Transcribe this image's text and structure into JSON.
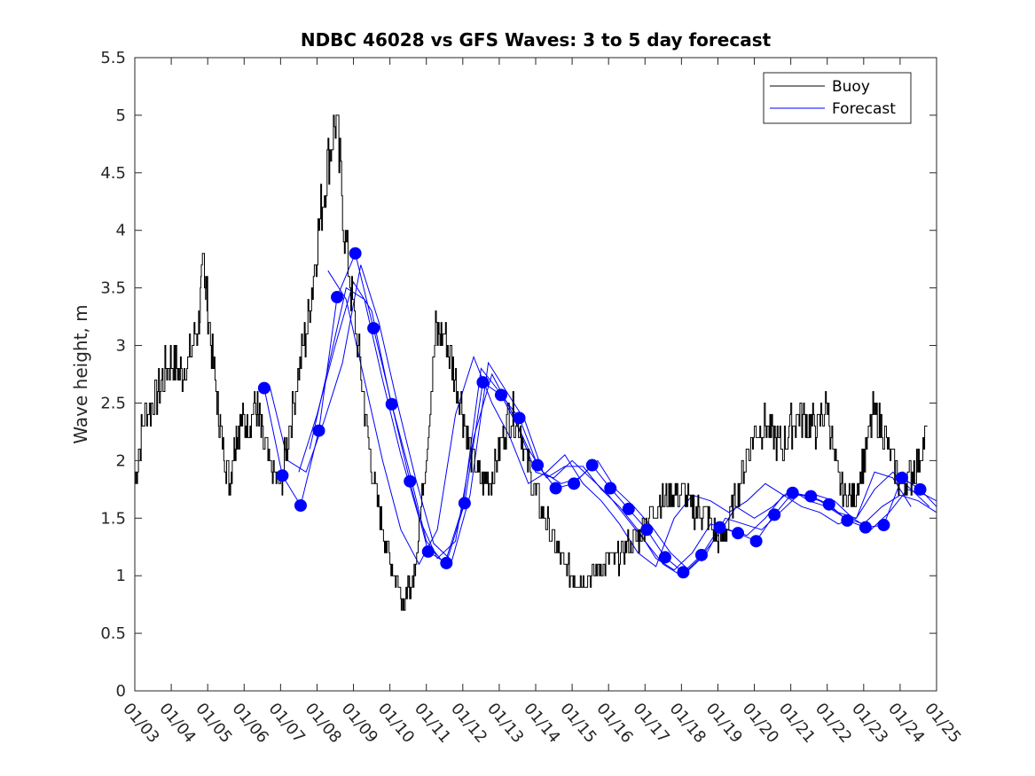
{
  "chart_data": {
    "type": "line",
    "title": "NDBC 46028 vs GFS Waves: 3 to 5 day forecast",
    "xlabel": "",
    "ylabel": "Wave height, m",
    "xlim": [
      0,
      22
    ],
    "ylim": [
      0,
      5.5
    ],
    "grid": false,
    "legend_position": "top-right",
    "x_tick_labels": [
      "01/03",
      "01/04",
      "01/05",
      "01/06",
      "01/07",
      "01/08",
      "01/09",
      "01/10",
      "01/11",
      "01/12",
      "01/13",
      "01/14",
      "01/15",
      "01/16",
      "01/17",
      "01/18",
      "01/19",
      "01/20",
      "01/21",
      "01/22",
      "01/23",
      "01/24",
      "01/25"
    ],
    "y_tick_labels": [
      "0",
      "0.5",
      "1",
      "1.5",
      "2",
      "2.5",
      "3",
      "3.5",
      "4",
      "4.5",
      "5",
      "5.5"
    ],
    "y_tick_values": [
      0,
      0.5,
      1,
      1.5,
      2,
      2.5,
      3,
      3.5,
      4,
      4.5,
      5,
      5.5
    ],
    "series": [
      {
        "name": "Buoy",
        "color": "#000000",
        "x": [
          0,
          0.25,
          0.5,
          0.75,
          1,
          1.25,
          1.5,
          1.75,
          1.9,
          2,
          2.25,
          2.4,
          2.6,
          2.75,
          2.9,
          3.1,
          3.3,
          3.5,
          3.75,
          4,
          4.2,
          4.5,
          4.75,
          5,
          5.25,
          5.5,
          5.75,
          6,
          6.25,
          6.5,
          6.75,
          7,
          7.25,
          7.4,
          7.5,
          7.6,
          7.75,
          8,
          8.25,
          8.5,
          8.75,
          9,
          9.25,
          9.5,
          9.75,
          10,
          10.25,
          10.5,
          10.75,
          11,
          11.25,
          11.5,
          11.75,
          12,
          12.25,
          12.5,
          12.75,
          13,
          13.25,
          13.5,
          13.75,
          14,
          14.25,
          14.5,
          14.75,
          15,
          15.25,
          15.5,
          15.75,
          16,
          16.25,
          16.5,
          16.75,
          17,
          17.25,
          17.5,
          17.75,
          18,
          18.25,
          18.5,
          18.75,
          19,
          19.25,
          19.5,
          19.75,
          20,
          20.25,
          20.5,
          20.75,
          21,
          21.25,
          21.5,
          21.75
        ],
        "y": [
          1.85,
          2.4,
          2.5,
          2.7,
          2.9,
          2.75,
          2.9,
          3.2,
          3.75,
          3.3,
          2.5,
          2.15,
          1.8,
          2.2,
          2.35,
          2.3,
          2.5,
          2.2,
          1.9,
          1.8,
          2.2,
          2.8,
          3.2,
          3.9,
          4.5,
          5.0,
          4.0,
          3.3,
          2.6,
          1.9,
          1.5,
          1.1,
          0.9,
          0.75,
          0.9,
          0.9,
          1.3,
          2.1,
          3.1,
          3.1,
          2.8,
          2.4,
          2.0,
          1.8,
          1.85,
          2.1,
          2.4,
          2.4,
          2.0,
          1.7,
          1.5,
          1.3,
          1.1,
          1.0,
          0.95,
          1.0,
          1.05,
          1.15,
          1.15,
          1.25,
          1.3,
          1.45,
          1.6,
          1.65,
          1.7,
          1.75,
          1.6,
          1.55,
          1.5,
          1.3,
          1.4,
          1.7,
          2.0,
          2.25,
          2.3,
          2.2,
          2.1,
          2.3,
          2.4,
          2.3,
          2.3,
          2.5,
          1.85,
          1.7,
          1.7,
          2.0,
          2.4,
          2.3,
          2.0,
          1.8,
          1.85,
          2.0,
          2.3
        ]
      },
      {
        "name": "Forecast",
        "color": "#0000ff",
        "marker_x": [
          3.55,
          4.05,
          4.55,
          5.05,
          5.55,
          6.05,
          6.55,
          7.05,
          7.55,
          8.05,
          8.55,
          9.05,
          9.55,
          10.05,
          10.55,
          11.05,
          11.55,
          12.05,
          12.55,
          13.05,
          13.55,
          14.05,
          14.55,
          15.05,
          15.55,
          16.05,
          16.55,
          17.05,
          17.55,
          18.05,
          18.55,
          19.05,
          19.55,
          20.05,
          20.55,
          21.05,
          21.55
        ],
        "marker_y": [
          2.63,
          1.87,
          1.61,
          2.26,
          3.42,
          3.8,
          3.15,
          2.49,
          1.82,
          1.21,
          1.11,
          1.63,
          2.68,
          2.57,
          2.37,
          1.96,
          1.76,
          1.8,
          1.96,
          1.76,
          1.58,
          1.4,
          1.16,
          1.03,
          1.18,
          1.42,
          1.37,
          1.3,
          1.53,
          1.72,
          1.69,
          1.62,
          1.48,
          1.42,
          1.44,
          1.85,
          1.75
        ],
        "lines": [
          {
            "x": [
              3.55,
              4.05,
              4.55,
              5.05,
              5.55,
              6.05,
              6.55,
              7.05,
              7.55,
              8.05,
              8.55,
              9.05,
              9.55,
              10.05,
              10.55,
              11.05,
              11.55,
              12.05,
              12.55,
              13.05,
              13.55,
              14.05,
              14.55,
              15.05,
              15.55,
              16.05,
              16.55,
              17.05,
              17.55,
              18.05,
              18.55,
              19.05,
              19.55,
              20.05,
              20.55,
              21.05,
              21.55,
              22.0
            ],
            "y": [
              2.63,
              1.87,
              1.61,
              2.26,
              3.42,
              3.8,
              3.15,
              2.49,
              1.82,
              1.21,
              1.11,
              1.63,
              2.68,
              2.57,
              2.37,
              1.96,
              1.76,
              1.8,
              1.96,
              1.76,
              1.58,
              1.4,
              1.16,
              1.03,
              1.18,
              1.42,
              1.37,
              1.3,
              1.53,
              1.72,
              1.69,
              1.62,
              1.48,
              1.42,
              1.44,
              1.85,
              1.75,
              1.6
            ]
          },
          {
            "x": [
              3.7,
              4.2,
              4.7,
              5.2,
              5.7,
              6.2,
              6.7,
              7.2,
              7.7,
              8.2,
              8.7,
              9.2,
              9.7,
              10.2,
              10.7,
              11.2,
              11.7,
              12.2,
              12.7,
              13.2,
              13.7,
              14.2,
              14.7,
              15.2,
              15.7,
              16.2,
              16.7,
              17.2,
              17.7,
              18.2,
              18.7,
              19.2,
              19.7,
              20.2,
              20.7,
              21.2,
              21.7,
              22.0
            ],
            "y": [
              2.65,
              2.0,
              1.9,
              2.35,
              2.85,
              3.7,
              3.2,
              2.5,
              1.85,
              1.28,
              1.13,
              1.7,
              2.85,
              2.6,
              2.35,
              1.9,
              1.8,
              1.85,
              2.0,
              1.75,
              1.6,
              1.42,
              1.2,
              1.05,
              1.2,
              1.5,
              1.45,
              1.4,
              1.55,
              1.7,
              1.7,
              1.65,
              1.5,
              1.4,
              1.55,
              1.75,
              1.7,
              1.65
            ]
          },
          {
            "x": [
              4.5,
              5.0,
              5.5,
              6.0,
              6.5,
              7.0,
              7.5,
              8.0,
              8.5,
              9.0,
              9.5,
              10.0,
              10.5,
              11.0,
              11.5,
              12.0,
              12.5,
              13.0,
              13.5,
              14.0,
              14.5,
              15.0,
              15.5,
              16.0,
              16.5,
              17.0,
              17.5,
              18.0,
              18.5,
              19.0,
              19.5,
              20.0,
              20.5,
              21.0,
              21.5,
              22.0
            ],
            "y": [
              1.9,
              2.4,
              3.0,
              3.55,
              3.3,
              2.55,
              1.95,
              1.3,
              1.1,
              1.6,
              2.8,
              2.6,
              2.3,
              1.9,
              1.85,
              2.0,
              1.85,
              1.7,
              1.5,
              1.3,
              1.1,
              1.0,
              1.15,
              1.35,
              1.6,
              1.5,
              1.6,
              1.75,
              1.65,
              1.6,
              1.5,
              1.45,
              1.6,
              1.7,
              1.65,
              1.55
            ]
          },
          {
            "x": [
              4.8,
              5.3,
              5.8,
              6.3,
              6.8,
              7.3,
              7.8,
              8.3,
              8.8,
              9.3,
              9.8,
              10.3,
              10.8,
              11.3,
              11.8,
              12.3,
              12.8,
              13.3,
              13.8,
              14.3,
              14.8,
              15.3,
              15.8,
              16.3,
              16.8,
              17.3,
              17.8,
              18.3,
              18.8,
              19.3,
              19.8,
              20.3,
              20.8,
              21.3,
              21.8
            ],
            "y": [
              2.1,
              2.8,
              3.5,
              3.4,
              2.7,
              2.05,
              1.5,
              1.15,
              1.3,
              2.2,
              2.75,
              2.45,
              2.1,
              1.85,
              1.95,
              1.95,
              1.75,
              1.6,
              1.4,
              1.15,
              1.05,
              1.2,
              1.45,
              1.4,
              1.35,
              1.5,
              1.7,
              1.7,
              1.65,
              1.55,
              1.5,
              1.75,
              1.9,
              1.75,
              1.6
            ]
          },
          {
            "x": [
              5.3,
              5.8,
              6.3,
              6.8,
              7.3,
              7.8,
              8.3,
              8.8,
              9.3,
              9.8,
              10.3,
              10.8,
              11.3,
              11.8,
              12.3,
              12.8,
              13.3,
              13.8,
              14.3,
              14.8,
              15.3,
              15.8,
              16.3,
              16.8,
              17.3,
              17.8,
              18.3,
              18.8,
              19.3,
              19.8,
              20.3,
              20.8,
              21.3
            ],
            "y": [
              3.65,
              3.4,
              2.7,
              2.0,
              1.4,
              1.1,
              1.4,
              2.4,
              2.9,
              2.5,
              2.2,
              1.8,
              1.9,
              2.05,
              1.8,
              1.65,
              1.45,
              1.2,
              1.08,
              1.5,
              1.7,
              1.65,
              1.55,
              1.65,
              1.8,
              1.7,
              1.6,
              1.55,
              1.45,
              1.5,
              1.9,
              1.85,
              1.6
            ]
          }
        ]
      }
    ]
  }
}
